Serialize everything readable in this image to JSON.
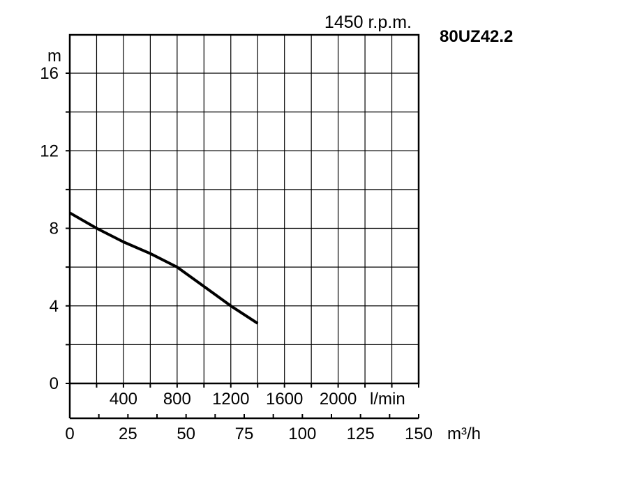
{
  "chart_data": {
    "type": "line",
    "title": "80UZ42.2",
    "subtitle": "1450 r.p.m.",
    "ylabel": "m",
    "ylim": [
      0,
      18
    ],
    "yticks": [
      "0",
      "4",
      "8",
      "12",
      "16"
    ],
    "ytick_values": [
      0,
      4,
      8,
      12,
      16
    ],
    "xlabel_primary": "l/min",
    "xticks_primary": [
      "400",
      "800",
      "1200",
      "1600",
      "2000"
    ],
    "xtick_values_primary": [
      400,
      800,
      1200,
      1600,
      2000
    ],
    "xlabel_secondary": "m³/h",
    "xticks_secondary": [
      "0",
      "25",
      "50",
      "75",
      "100",
      "125",
      "150"
    ],
    "xtick_values_secondary": [
      0,
      25,
      50,
      75,
      100,
      125,
      150
    ],
    "xlim": [
      0,
      2600
    ],
    "grid": true,
    "series": [
      {
        "color": "#000000",
        "x": [
          0,
          200,
          400,
          600,
          800,
          1000,
          1200,
          1400
        ],
        "y": [
          8.8,
          8.0,
          7.3,
          6.7,
          6.0,
          5.0,
          4.0,
          3.1
        ]
      }
    ]
  }
}
